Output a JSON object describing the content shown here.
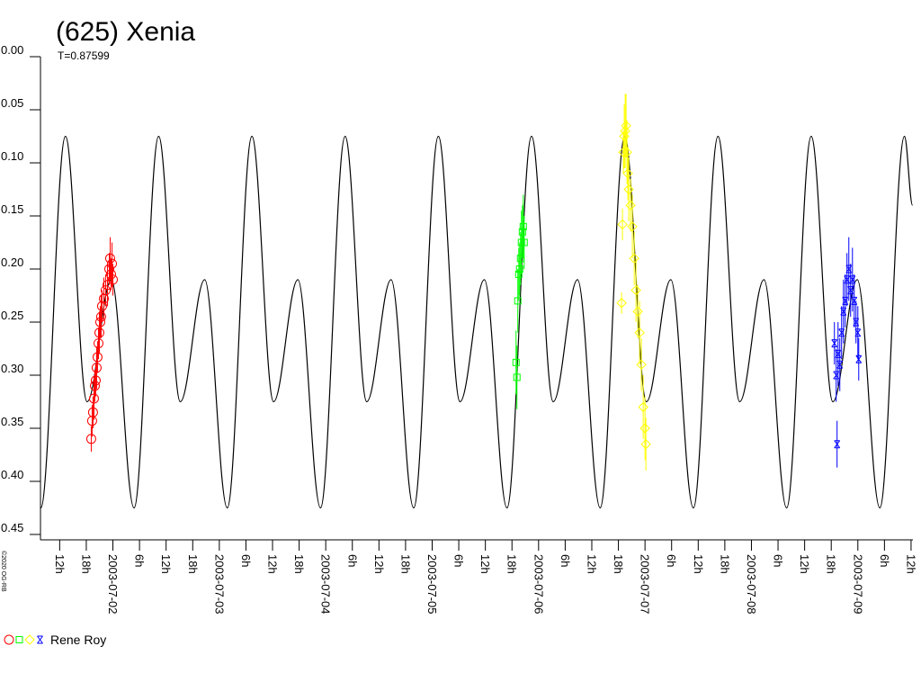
{
  "chart_data": {
    "type": "lightcurve",
    "title": "(625) Xenia",
    "subtitle": "T=0.87599",
    "copyright": "©2020 OG-RB",
    "legend": {
      "label": "Rene Roy"
    },
    "y_inverted": true,
    "ylim": [
      0,
      0.45
    ],
    "yticks": [
      {
        "value": 0,
        "label": "0.00"
      },
      {
        "value": 0.05,
        "label": "0.05"
      },
      {
        "value": 0.1,
        "label": "0.10"
      },
      {
        "value": 0.15,
        "label": "0.15"
      },
      {
        "value": 0.2,
        "label": "0.20"
      },
      {
        "value": 0.25,
        "label": "0.25"
      },
      {
        "value": 0.3,
        "label": "0.30"
      },
      {
        "value": 0.35,
        "label": "0.35"
      },
      {
        "value": 0.4,
        "label": "0.40"
      },
      {
        "value": 0.45,
        "label": "0.45"
      }
    ],
    "xlim": [
      "2003-07-01 07:40",
      "2003-07-09 12:25"
    ],
    "xticks": [
      {
        "value": "2003-07-01 12:00",
        "label": "12h"
      },
      {
        "value": "2003-07-01 18:00",
        "label": "18h"
      },
      {
        "value": "2003-07-02 00:00",
        "label": "2003-07-02"
      },
      {
        "value": "2003-07-02 06:00",
        "label": "6h"
      },
      {
        "value": "2003-07-02 12:00",
        "label": "12h"
      },
      {
        "value": "2003-07-02 18:00",
        "label": "18h"
      },
      {
        "value": "2003-07-03 00:00",
        "label": "2003-07-03"
      },
      {
        "value": "2003-07-03 06:00",
        "label": "6h"
      },
      {
        "value": "2003-07-03 12:00",
        "label": "12h"
      },
      {
        "value": "2003-07-03 18:00",
        "label": "18h"
      },
      {
        "value": "2003-07-04 00:00",
        "label": "2003-07-04"
      },
      {
        "value": "2003-07-04 06:00",
        "label": "6h"
      },
      {
        "value": "2003-07-04 12:00",
        "label": "12h"
      },
      {
        "value": "2003-07-04 18:00",
        "label": "18h"
      },
      {
        "value": "2003-07-05 00:00",
        "label": "2003-07-05"
      },
      {
        "value": "2003-07-05 06:00",
        "label": "6h"
      },
      {
        "value": "2003-07-05 12:00",
        "label": "12h"
      },
      {
        "value": "2003-07-05 18:00",
        "label": "18h"
      },
      {
        "value": "2003-07-06 00:00",
        "label": "2003-07-06"
      },
      {
        "value": "2003-07-06 06:00",
        "label": "6h"
      },
      {
        "value": "2003-07-06 12:00",
        "label": "12h"
      },
      {
        "value": "2003-07-06 18:00",
        "label": "18h"
      },
      {
        "value": "2003-07-07 00:00",
        "label": "2003-07-07"
      },
      {
        "value": "2003-07-07 06:00",
        "label": "6h"
      },
      {
        "value": "2003-07-07 12:00",
        "label": "12h"
      },
      {
        "value": "2003-07-07 18:00",
        "label": "18h"
      },
      {
        "value": "2003-07-08 00:00",
        "label": "2003-07-08"
      },
      {
        "value": "2003-07-08 06:00",
        "label": "6h"
      },
      {
        "value": "2003-07-08 12:00",
        "label": "12h"
      },
      {
        "value": "2003-07-08 18:00",
        "label": "18h"
      },
      {
        "value": "2003-07-09 00:00",
        "label": "2003-07-09"
      },
      {
        "value": "2003-07-09 06:00",
        "label": "6h"
      },
      {
        "value": "2003-07-09 12:00",
        "label": "12h"
      }
    ],
    "model": {
      "color": "#000000",
      "x": [
        "2003-07-01 07:44",
        "2003-07-01 13:18",
        "2003-07-01 18:11",
        "2003-07-01 23:40",
        "2003-07-02 04:46",
        "2003-07-02 10:19",
        "2003-07-02 15:12",
        "2003-07-02 20:42",
        "2003-07-03 01:47",
        "2003-07-03 07:21",
        "2003-07-03 12:14",
        "2003-07-03 17:43",
        "2003-07-03 22:49",
        "2003-07-04 04:22",
        "2003-07-04 09:15",
        "2003-07-04 14:44",
        "2003-07-04 19:50",
        "2003-07-05 01:24",
        "2003-07-05 06:17",
        "2003-07-05 11:46",
        "2003-07-05 16:52",
        "2003-07-05 22:25",
        "2003-07-06 03:18",
        "2003-07-06 08:47",
        "2003-07-06 13:53",
        "2003-07-06 19:26",
        "2003-07-07 00:19",
        "2003-07-07 05:49",
        "2003-07-07 10:54",
        "2003-07-07 16:28",
        "2003-07-07 21:21",
        "2003-07-08 02:50",
        "2003-07-08 07:56",
        "2003-07-08 13:29",
        "2003-07-08 18:22",
        "2003-07-08 23:52",
        "2003-07-09 04:57",
        "2003-07-09 10:31",
        "2003-07-09 12:20"
      ],
      "values": [
        0.425,
        0.075,
        0.325,
        0.21,
        0.425,
        0.075,
        0.325,
        0.21,
        0.425,
        0.075,
        0.325,
        0.21,
        0.425,
        0.075,
        0.325,
        0.21,
        0.425,
        0.075,
        0.325,
        0.21,
        0.425,
        0.075,
        0.325,
        0.21,
        0.425,
        0.075,
        0.325,
        0.21,
        0.425,
        0.075,
        0.325,
        0.21,
        0.425,
        0.075,
        0.325,
        0.21,
        0.425,
        0.075,
        0.14
      ]
    },
    "series": [
      {
        "color": "#ff0000",
        "marker": "circle",
        "x": [
          "2003-07-01 19:07",
          "2003-07-01 19:19",
          "2003-07-01 19:31",
          "2003-07-01 19:44",
          "2003-07-01 19:56",
          "2003-07-01 20:08",
          "2003-07-01 20:20",
          "2003-07-01 20:32",
          "2003-07-01 20:45",
          "2003-07-01 20:57",
          "2003-07-01 21:09",
          "2003-07-01 21:21",
          "2003-07-01 21:33",
          "2003-07-01 21:58",
          "2003-07-01 22:22",
          "2003-07-01 22:47",
          "2003-07-01 23:11",
          "2003-07-01 23:23",
          "2003-07-01 23:35",
          "2003-07-01 23:48",
          "2003-07-02 00:00"
        ],
        "values": [
          0.36,
          0.343,
          0.335,
          0.322,
          0.31,
          0.305,
          0.293,
          0.283,
          0.27,
          0.26,
          0.25,
          0.245,
          0.235,
          0.228,
          0.22,
          0.215,
          0.2,
          0.19,
          0.205,
          0.195,
          0.21
        ],
        "errors": [
          0.012,
          0.015,
          0.015,
          0.02,
          0.015,
          0.015,
          0.02,
          0.015,
          0.015,
          0.02,
          0.015,
          0.02,
          0.015,
          0.02,
          0.015,
          0.02,
          0.015,
          0.02,
          0.015,
          0.02,
          0.015
        ]
      },
      {
        "color": "#00ff00",
        "marker": "square",
        "x": [
          "2003-07-05 18:55",
          "2003-07-05 19:07",
          "2003-07-05 19:19",
          "2003-07-05 19:32",
          "2003-07-05 19:44",
          "2003-07-05 19:56",
          "2003-07-05 20:08",
          "2003-07-05 20:21",
          "2003-07-05 20:33",
          "2003-07-05 20:45"
        ],
        "values": [
          0.288,
          0.302,
          0.23,
          0.205,
          0.2,
          0.19,
          0.175,
          0.165,
          0.16,
          0.175
        ],
        "errors": [
          0.03,
          0.03,
          0.03,
          0.025,
          0.025,
          0.025,
          0.03,
          0.025,
          0.03,
          0.025
        ]
      },
      {
        "color": "#ffff00",
        "marker": "diamond",
        "x": [
          "2003-07-06 18:43",
          "2003-07-06 18:55",
          "2003-07-06 19:07",
          "2003-07-06 19:19",
          "2003-07-06 19:32",
          "2003-07-06 19:44",
          "2003-07-06 19:56",
          "2003-07-06 20:08",
          "2003-07-06 20:20",
          "2003-07-06 20:45",
          "2003-07-06 21:09",
          "2003-07-06 21:34",
          "2003-07-06 21:58",
          "2003-07-06 22:22",
          "2003-07-06 22:47",
          "2003-07-06 23:11",
          "2003-07-06 23:36",
          "2003-07-07 00:00",
          "2003-07-07 00:12"
        ],
        "values": [
          0.232,
          0.158,
          0.09,
          0.075,
          0.07,
          0.065,
          0.09,
          0.11,
          0.125,
          0.14,
          0.16,
          0.19,
          0.22,
          0.24,
          0.26,
          0.29,
          0.33,
          0.35,
          0.365
        ],
        "errors": [
          0.01,
          0.015,
          0.02,
          0.03,
          0.035,
          0.03,
          0.03,
          0.025,
          0.03,
          0.025,
          0.03,
          0.025,
          0.03,
          0.025,
          0.03,
          0.025,
          0.03,
          0.03,
          0.025
        ]
      },
      {
        "color": "#0000ff",
        "marker": "star",
        "x": [
          "2003-07-08 18:43",
          "2003-07-08 19:07",
          "2003-07-08 19:19",
          "2003-07-08 19:32",
          "2003-07-08 19:56",
          "2003-07-08 20:20",
          "2003-07-08 20:45",
          "2003-07-08 21:09",
          "2003-07-08 21:33",
          "2003-07-08 21:58",
          "2003-07-08 22:22",
          "2003-07-08 22:47",
          "2003-07-08 23:11",
          "2003-07-08 23:35",
          "2003-07-09 00:00",
          "2003-07-09 00:12"
        ],
        "values": [
          0.27,
          0.3,
          0.365,
          0.28,
          0.29,
          0.26,
          0.24,
          0.23,
          0.21,
          0.2,
          0.22,
          0.21,
          0.23,
          0.25,
          0.26,
          0.285
        ],
        "errors": [
          0.02,
          0.025,
          0.022,
          0.03,
          0.025,
          0.025,
          0.03,
          0.025,
          0.025,
          0.03,
          0.025,
          0.03,
          0.025,
          0.02,
          0.025,
          0.02
        ]
      }
    ]
  }
}
